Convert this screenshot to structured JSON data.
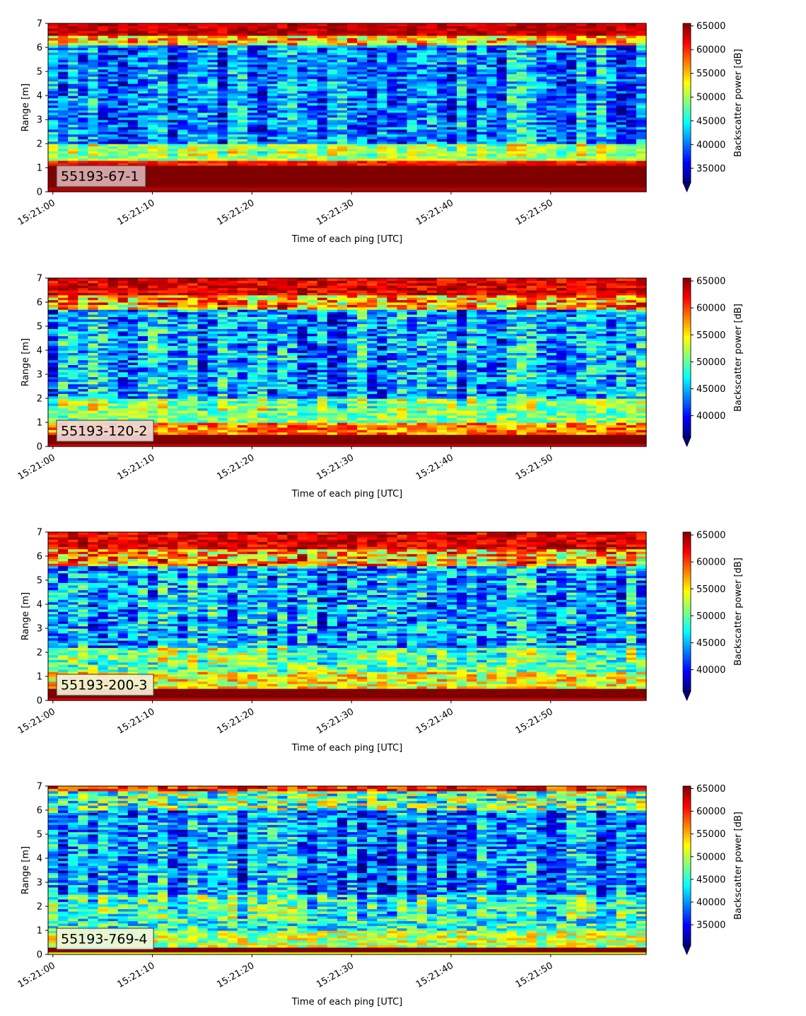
{
  "chart_data": [
    {
      "type": "heatmap",
      "panel_label": "55193-67-1",
      "panel_label_bg": "#dcaeb0",
      "xlabel": "Time of each ping [UTC]",
      "ylabel": "Range [m]",
      "x_ticks": [
        "15:21:00",
        "15:21:10",
        "15:21:20",
        "15:21:30",
        "15:21:40",
        "15:21:50"
      ],
      "x_range_seconds": [
        0,
        60
      ],
      "y_ticks": [
        0,
        1,
        2,
        3,
        4,
        5,
        6,
        7
      ],
      "ylim": [
        0,
        7
      ],
      "colorbar": {
        "label": "Backscatter power [dB]",
        "ticks": [
          35000,
          40000,
          45000,
          50000,
          55000,
          60000,
          65000
        ],
        "range": [
          32000,
          65535
        ],
        "extend": "min",
        "colormap": "jet"
      },
      "description_profile": {
        "bottom_band_m": [
          0.2,
          1.2
        ],
        "top_band_m": [
          6.5,
          7.0
        ],
        "near_bottom_intensity": "high",
        "mid_intensity": "low"
      }
    },
    {
      "type": "heatmap",
      "panel_label": "55193-120-2",
      "panel_label_bg": "#f0d8d6",
      "xlabel": "Time of each ping [UTC]",
      "ylabel": "Range [m]",
      "x_ticks": [
        "15:21:00",
        "15:21:10",
        "15:21:20",
        "15:21:30",
        "15:21:40",
        "15:21:50"
      ],
      "x_range_seconds": [
        0,
        60
      ],
      "y_ticks": [
        0,
        1,
        2,
        3,
        4,
        5,
        6,
        7
      ],
      "ylim": [
        0,
        7
      ],
      "colorbar": {
        "label": "Backscatter power [dB]",
        "ticks": [
          40000,
          45000,
          50000,
          55000,
          60000,
          65000
        ],
        "range": [
          36000,
          65535
        ],
        "extend": "min",
        "colormap": "jet"
      }
    },
    {
      "type": "heatmap",
      "panel_label": "55193-200-3",
      "panel_label_bg": "#f6efd4",
      "xlabel": "Time of each ping [UTC]",
      "ylabel": "Range [m]",
      "x_ticks": [
        "15:21:00",
        "15:21:10",
        "15:21:20",
        "15:21:30",
        "15:21:40",
        "15:21:50"
      ],
      "x_range_seconds": [
        0,
        60
      ],
      "y_ticks": [
        0,
        1,
        2,
        3,
        4,
        5,
        6,
        7
      ],
      "ylim": [
        0,
        7
      ],
      "colorbar": {
        "label": "Backscatter power [dB]",
        "ticks": [
          40000,
          45000,
          50000,
          55000,
          60000,
          65000
        ],
        "range": [
          36000,
          65535
        ],
        "extend": "min",
        "colormap": "jet"
      }
    },
    {
      "type": "heatmap",
      "panel_label": "55193-769-4",
      "panel_label_bg": "#eef7dc",
      "xlabel": "Time of each ping [UTC]",
      "ylabel": "Range [m]",
      "x_ticks": [
        "15:21:00",
        "15:21:10",
        "15:21:20",
        "15:21:30",
        "15:21:40",
        "15:21:50"
      ],
      "x_range_seconds": [
        0,
        60
      ],
      "y_ticks": [
        0,
        1,
        2,
        3,
        4,
        5,
        6,
        7
      ],
      "ylim": [
        0,
        7
      ],
      "colorbar": {
        "label": "Backscatter power [dB]",
        "ticks": [
          35000,
          40000,
          45000,
          50000,
          55000,
          60000,
          65000
        ],
        "range": [
          30500,
          65535
        ],
        "extend": "min",
        "colormap": "jet"
      }
    }
  ]
}
